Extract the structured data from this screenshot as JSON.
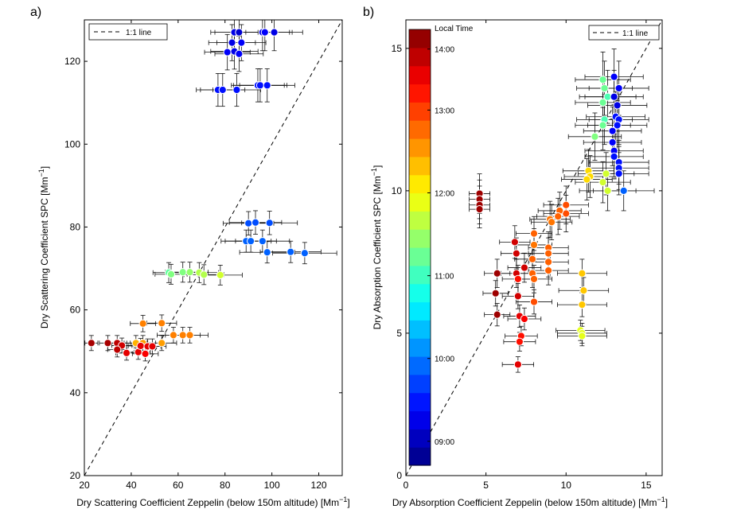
{
  "chart_data": [
    {
      "type": "scatter",
      "panel_label": "a)",
      "xlabel_main": "Dry Scattering Coefficient Zeppelin (below 150m altitude) [Mm",
      "ylabel_main": "Dry Scattering Coefficient SPC [Mm",
      "unit_exponent": "−1",
      "unit_close": "]",
      "xlim": [
        20,
        130
      ],
      "ylim": [
        20,
        130
      ],
      "xticks": [
        20,
        40,
        60,
        80,
        100,
        120
      ],
      "yticks": [
        20,
        40,
        60,
        80,
        100,
        120
      ],
      "legend_entry": "1:1 line",
      "legend_position": "top-left",
      "colormap": "jet",
      "points": [
        {
          "x": 84,
          "y": 127,
          "c": 0.1
        },
        {
          "x": 86,
          "y": 127,
          "c": 0.08
        },
        {
          "x": 96,
          "y": 127,
          "c": 0.1
        },
        {
          "x": 97,
          "y": 127,
          "c": 0.12
        },
        {
          "x": 101,
          "y": 127,
          "c": 0.1
        },
        {
          "x": 83,
          "y": 124.5,
          "c": 0.1
        },
        {
          "x": 87,
          "y": 124.5,
          "c": 0.12
        },
        {
          "x": 81,
          "y": 122.2,
          "c": 0.12
        },
        {
          "x": 84,
          "y": 122.4,
          "c": 0.1
        },
        {
          "x": 86,
          "y": 121.8,
          "c": 0.12
        },
        {
          "x": 94,
          "y": 114.2,
          "c": 0.14
        },
        {
          "x": 95,
          "y": 114.2,
          "c": 0.14
        },
        {
          "x": 98,
          "y": 114.2,
          "c": 0.14
        },
        {
          "x": 77,
          "y": 113.1,
          "c": 0.14
        },
        {
          "x": 79,
          "y": 113.1,
          "c": 0.14
        },
        {
          "x": 85,
          "y": 113.1,
          "c": 0.14
        },
        {
          "x": 90,
          "y": 80.9,
          "c": 0.2
        },
        {
          "x": 93,
          "y": 81.1,
          "c": 0.2
        },
        {
          "x": 99,
          "y": 81.0,
          "c": 0.2
        },
        {
          "x": 89,
          "y": 76.6,
          "c": 0.22
        },
        {
          "x": 91,
          "y": 76.6,
          "c": 0.22
        },
        {
          "x": 96,
          "y": 76.6,
          "c": 0.22
        },
        {
          "x": 98,
          "y": 73.9,
          "c": 0.22
        },
        {
          "x": 108,
          "y": 74.0,
          "c": 0.22
        },
        {
          "x": 114,
          "y": 73.7,
          "c": 0.22
        },
        {
          "x": 56,
          "y": 69.0,
          "c": 0.47
        },
        {
          "x": 57,
          "y": 68.6,
          "c": 0.5
        },
        {
          "x": 62,
          "y": 69.1,
          "c": 0.5
        },
        {
          "x": 65,
          "y": 69.1,
          "c": 0.52
        },
        {
          "x": 69,
          "y": 69.0,
          "c": 0.55
        },
        {
          "x": 71,
          "y": 68.5,
          "c": 0.55
        },
        {
          "x": 78,
          "y": 68.4,
          "c": 0.58
        },
        {
          "x": 45,
          "y": 56.7,
          "c": 0.75
        },
        {
          "x": 53,
          "y": 56.8,
          "c": 0.75
        },
        {
          "x": 58,
          "y": 53.9,
          "c": 0.75
        },
        {
          "x": 62,
          "y": 53.9,
          "c": 0.75
        },
        {
          "x": 65,
          "y": 53.9,
          "c": 0.75
        },
        {
          "x": 42,
          "y": 52.0,
          "c": 0.7
        },
        {
          "x": 45,
          "y": 52.0,
          "c": 0.72
        },
        {
          "x": 53,
          "y": 52.0,
          "c": 0.72
        },
        {
          "x": 23,
          "y": 52.0,
          "c": 0.96
        },
        {
          "x": 30,
          "y": 52.0,
          "c": 0.96
        },
        {
          "x": 34,
          "y": 52.0,
          "c": 0.94
        },
        {
          "x": 36,
          "y": 51.4,
          "c": 0.92
        },
        {
          "x": 34,
          "y": 50.4,
          "c": 0.94
        },
        {
          "x": 38,
          "y": 49.6,
          "c": 0.9
        },
        {
          "x": 43,
          "y": 49.8,
          "c": 0.9
        },
        {
          "x": 46,
          "y": 49.4,
          "c": 0.88
        },
        {
          "x": 44,
          "y": 51.3,
          "c": 0.9
        },
        {
          "x": 47,
          "y": 51.2,
          "c": 0.9
        },
        {
          "x": 49,
          "y": 51.2,
          "c": 0.9
        }
      ]
    },
    {
      "type": "scatter",
      "panel_label": "b)",
      "xlabel_main": "Dry Absorption Coefficient Zeppelin (below 150m altitude) [Mm",
      "ylabel_main": "Dry Absorption Coefficient SPC [Mm",
      "unit_exponent": "−1",
      "unit_close": "]",
      "xlim": [
        0,
        16
      ],
      "ylim": [
        0,
        16
      ],
      "xticks": [
        0,
        5,
        10,
        15
      ],
      "yticks": [
        0,
        5,
        10,
        15
      ],
      "legend_entry": "1:1 line",
      "legend_position": "top-right",
      "colorbar": {
        "title": "Local Time",
        "ticks": [
          {
            "label": "09:00",
            "pos": 0.055
          },
          {
            "label": "10:00",
            "pos": 0.245
          },
          {
            "label": "11:00",
            "pos": 0.435
          },
          {
            "label": "12:00",
            "pos": 0.625
          },
          {
            "label": "13:00",
            "pos": 0.815
          },
          {
            "label": "14:00",
            "pos": 0.955
          }
        ],
        "levels": 24
      },
      "points": [
        {
          "x": 13.0,
          "y": 14.0,
          "c": 0.12
        },
        {
          "x": 13.3,
          "y": 13.6,
          "c": 0.12
        },
        {
          "x": 12.3,
          "y": 13.9,
          "c": 0.48
        },
        {
          "x": 12.4,
          "y": 13.6,
          "c": 0.48
        },
        {
          "x": 12.6,
          "y": 13.3,
          "c": 0.45
        },
        {
          "x": 12.3,
          "y": 13.1,
          "c": 0.48
        },
        {
          "x": 13.0,
          "y": 13.3,
          "c": 0.1
        },
        {
          "x": 13.2,
          "y": 13.0,
          "c": 0.1
        },
        {
          "x": 12.4,
          "y": 12.5,
          "c": 0.45
        },
        {
          "x": 12.3,
          "y": 12.3,
          "c": 0.48
        },
        {
          "x": 13.1,
          "y": 12.6,
          "c": 0.14
        },
        {
          "x": 13.3,
          "y": 12.5,
          "c": 0.14
        },
        {
          "x": 13.2,
          "y": 12.3,
          "c": 0.14
        },
        {
          "x": 12.9,
          "y": 12.1,
          "c": 0.12
        },
        {
          "x": 12.9,
          "y": 11.7,
          "c": 0.12
        },
        {
          "x": 13.0,
          "y": 11.4,
          "c": 0.12
        },
        {
          "x": 11.8,
          "y": 11.9,
          "c": 0.5
        },
        {
          "x": 13.0,
          "y": 11.2,
          "c": 0.14
        },
        {
          "x": 13.3,
          "y": 11.0,
          "c": 0.14
        },
        {
          "x": 13.3,
          "y": 10.8,
          "c": 0.14
        },
        {
          "x": 13.3,
          "y": 10.6,
          "c": 0.14
        },
        {
          "x": 11.4,
          "y": 10.7,
          "c": 0.66
        },
        {
          "x": 11.5,
          "y": 10.5,
          "c": 0.66
        },
        {
          "x": 11.3,
          "y": 10.4,
          "c": 0.66
        },
        {
          "x": 12.5,
          "y": 10.6,
          "c": 0.58
        },
        {
          "x": 12.3,
          "y": 10.3,
          "c": 0.58
        },
        {
          "x": 12.6,
          "y": 10.0,
          "c": 0.58
        },
        {
          "x": 13.6,
          "y": 10.0,
          "c": 0.22
        },
        {
          "x": 4.6,
          "y": 9.9,
          "c": 0.97
        },
        {
          "x": 4.6,
          "y": 9.7,
          "c": 0.97
        },
        {
          "x": 4.6,
          "y": 9.5,
          "c": 0.97
        },
        {
          "x": 4.6,
          "y": 9.35,
          "c": 0.97
        },
        {
          "x": 10.0,
          "y": 9.5,
          "c": 0.8
        },
        {
          "x": 10.0,
          "y": 9.2,
          "c": 0.8
        },
        {
          "x": 9.6,
          "y": 9.3,
          "c": 0.78
        },
        {
          "x": 9.5,
          "y": 9.1,
          "c": 0.78
        },
        {
          "x": 9.0,
          "y": 9.0,
          "c": 0.76
        },
        {
          "x": 9.1,
          "y": 8.9,
          "c": 0.76
        },
        {
          "x": 8.0,
          "y": 8.5,
          "c": 0.78
        },
        {
          "x": 6.8,
          "y": 8.2,
          "c": 0.92
        },
        {
          "x": 8.0,
          "y": 8.1,
          "c": 0.76
        },
        {
          "x": 8.9,
          "y": 8.0,
          "c": 0.78
        },
        {
          "x": 6.9,
          "y": 7.8,
          "c": 0.92
        },
        {
          "x": 8.9,
          "y": 7.8,
          "c": 0.78
        },
        {
          "x": 7.9,
          "y": 7.6,
          "c": 0.78
        },
        {
          "x": 8.9,
          "y": 7.5,
          "c": 0.78
        },
        {
          "x": 8.9,
          "y": 7.2,
          "c": 0.78
        },
        {
          "x": 7.4,
          "y": 7.3,
          "c": 0.92
        },
        {
          "x": 5.7,
          "y": 7.1,
          "c": 0.97
        },
        {
          "x": 6.9,
          "y": 7.1,
          "c": 0.92
        },
        {
          "x": 7.9,
          "y": 7.1,
          "c": 0.78
        },
        {
          "x": 11.0,
          "y": 7.1,
          "c": 0.68
        },
        {
          "x": 7.0,
          "y": 6.9,
          "c": 0.86
        },
        {
          "x": 8.0,
          "y": 6.9,
          "c": 0.78
        },
        {
          "x": 11.1,
          "y": 6.5,
          "c": 0.68
        },
        {
          "x": 5.6,
          "y": 6.4,
          "c": 0.97
        },
        {
          "x": 7.0,
          "y": 6.3,
          "c": 0.92
        },
        {
          "x": 8.0,
          "y": 6.1,
          "c": 0.8
        },
        {
          "x": 11.0,
          "y": 6.0,
          "c": 0.68
        },
        {
          "x": 5.7,
          "y": 5.65,
          "c": 0.97
        },
        {
          "x": 7.1,
          "y": 5.6,
          "c": 0.9
        },
        {
          "x": 7.4,
          "y": 5.5,
          "c": 0.88
        },
        {
          "x": 10.9,
          "y": 5.1,
          "c": 0.6
        },
        {
          "x": 11.0,
          "y": 5.0,
          "c": 0.6
        },
        {
          "x": 11.0,
          "y": 4.9,
          "c": 0.6
        },
        {
          "x": 7.2,
          "y": 4.9,
          "c": 0.86
        },
        {
          "x": 7.1,
          "y": 4.7,
          "c": 0.86
        },
        {
          "x": 7.0,
          "y": 3.9,
          "c": 0.9
        }
      ]
    }
  ]
}
